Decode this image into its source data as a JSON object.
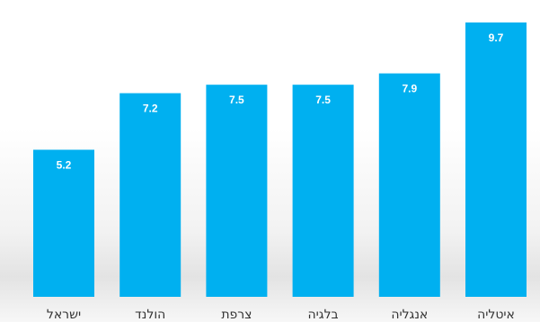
{
  "chart_data": {
    "type": "bar",
    "categories": [
      "ישראל",
      "הולנד",
      "צרפת",
      "בלגיה",
      "אנגליה",
      "איטליה"
    ],
    "values": [
      5.2,
      7.2,
      7.5,
      7.5,
      7.9,
      9.7
    ],
    "data_labels": [
      "5.2",
      "7.2",
      "7.5",
      "7.5",
      "7.9",
      "9.7"
    ],
    "ylim": [
      0,
      10
    ],
    "grid": false,
    "legend": "none",
    "bar_color": "#00b0f0",
    "label_color": "#ffffff",
    "tick_color": "#333333"
  }
}
